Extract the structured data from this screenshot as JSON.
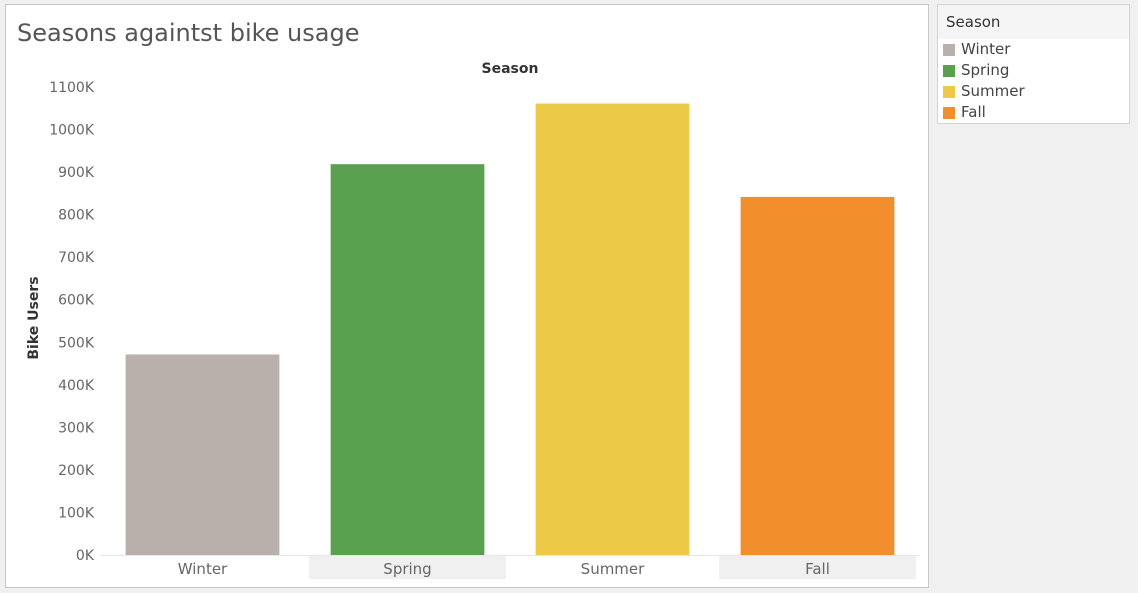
{
  "chart_data": {
    "type": "bar",
    "title": "Seasons againtst bike usage",
    "column_header": "Season",
    "xlabel": "",
    "ylabel": "Bike Users",
    "categories": [
      "Winter",
      "Spring",
      "Summer",
      "Fall"
    ],
    "values": [
      471348,
      918589,
      1061129,
      841613
    ],
    "colors": [
      "#bab0ab",
      "#59a14f",
      "#edc948",
      "#f28e2b"
    ],
    "ylim": [
      0,
      1100000
    ],
    "yticks": [
      {
        "value": 0,
        "label": "0K"
      },
      {
        "value": 100000,
        "label": "100K"
      },
      {
        "value": 200000,
        "label": "200K"
      },
      {
        "value": 300000,
        "label": "300K"
      },
      {
        "value": 400000,
        "label": "400K"
      },
      {
        "value": 500000,
        "label": "500K"
      },
      {
        "value": 600000,
        "label": "600K"
      },
      {
        "value": 700000,
        "label": "700K"
      },
      {
        "value": 800000,
        "label": "800K"
      },
      {
        "value": 900000,
        "label": "900K"
      },
      {
        "value": 1000000,
        "label": "1000K"
      },
      {
        "value": 1100000,
        "label": "1100K"
      }
    ],
    "grid": false,
    "legend_placement": "right"
  },
  "legend": {
    "title": "Season",
    "items": [
      {
        "label": "Winter",
        "color": "#bab0ab"
      },
      {
        "label": "Spring",
        "color": "#59a14f"
      },
      {
        "label": "Summer",
        "color": "#edc948"
      },
      {
        "label": "Fall",
        "color": "#f28e2b"
      }
    ]
  },
  "colors": {
    "band_shade": "#f0f0f0",
    "axis_text": "#666666",
    "axis_line": "#e6e6e6"
  }
}
